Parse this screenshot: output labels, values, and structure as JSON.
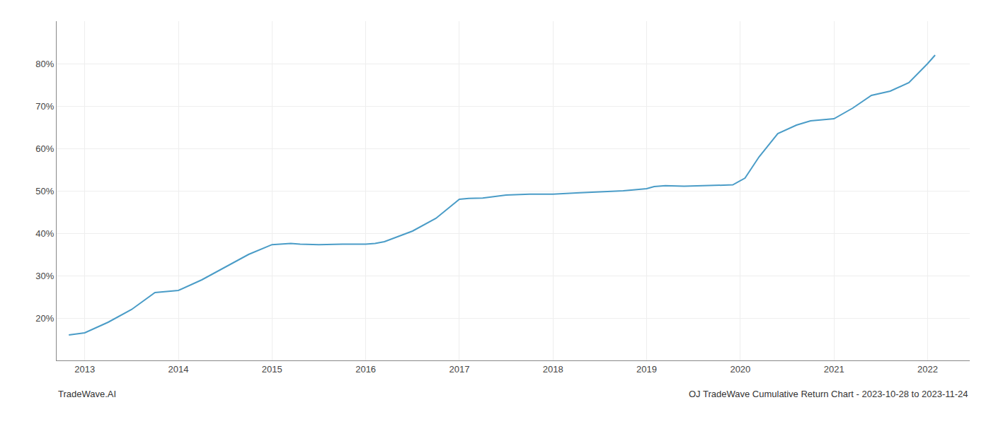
{
  "chart_data": {
    "type": "line",
    "x": [
      2012.83,
      2013.0,
      2013.25,
      2013.5,
      2013.75,
      2014.0,
      2014.25,
      2014.5,
      2014.75,
      2015.0,
      2015.1,
      2015.2,
      2015.3,
      2015.4,
      2015.5,
      2015.75,
      2016.0,
      2016.1,
      2016.2,
      2016.5,
      2016.75,
      2017.0,
      2017.1,
      2017.25,
      2017.5,
      2017.75,
      2018.0,
      2018.25,
      2018.5,
      2018.75,
      2019.0,
      2019.08,
      2019.2,
      2019.4,
      2019.6,
      2019.8,
      2019.92,
      2020.05,
      2020.2,
      2020.4,
      2020.6,
      2020.75,
      2021.0,
      2021.2,
      2021.4,
      2021.6,
      2021.8,
      2022.0,
      2022.08
    ],
    "values": [
      16.0,
      16.5,
      19.0,
      22.0,
      26.0,
      26.5,
      29.0,
      32.0,
      35.0,
      37.3,
      37.5,
      37.6,
      37.4,
      37.3,
      37.3,
      37.4,
      37.4,
      37.6,
      38.0,
      40.5,
      43.5,
      48.0,
      48.2,
      48.3,
      49.0,
      49.2,
      49.2,
      49.5,
      49.7,
      50.0,
      50.5,
      51.0,
      51.2,
      51.1,
      51.2,
      51.3,
      51.4,
      53.0,
      58.0,
      63.5,
      65.5,
      66.5,
      67.0,
      69.5,
      72.5,
      73.5,
      75.5,
      80.0,
      82.0
    ],
    "color": "#4a9cc7",
    "xlim": [
      2012.7,
      2022.45
    ],
    "xticks": [
      2013,
      2014,
      2015,
      2016,
      2017,
      2018,
      2019,
      2020,
      2021,
      2022
    ],
    "ylim": [
      10,
      90
    ],
    "yticks": [
      {
        "value": 20,
        "label": "20%"
      },
      {
        "value": 30,
        "label": "30%"
      },
      {
        "value": 40,
        "label": "40%"
      },
      {
        "value": 50,
        "label": "50%"
      },
      {
        "value": 60,
        "label": "60%"
      },
      {
        "value": 70,
        "label": "70%"
      },
      {
        "value": 80,
        "label": "80%"
      }
    ],
    "grid": true,
    "annotations": [
      "TradeWave.AI",
      "OJ TradeWave Cumulative Return Chart - 2023-10-28 to 2023-11-24"
    ]
  }
}
